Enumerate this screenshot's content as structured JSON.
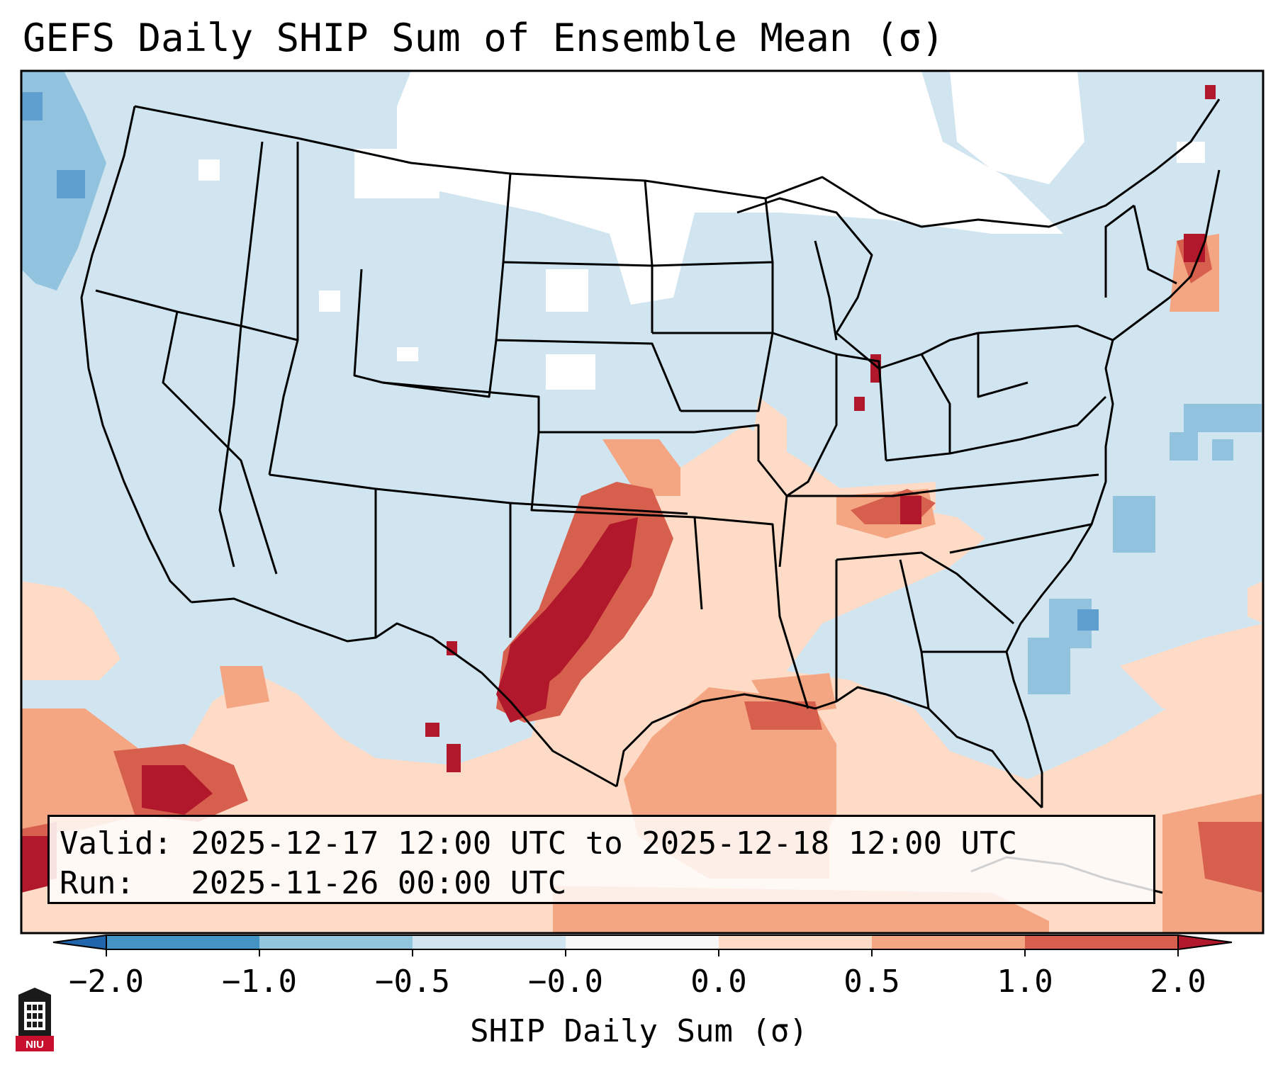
{
  "title": "GEFS Daily SHIP Sum of Ensemble Mean (σ)",
  "info": {
    "valid_line": "Valid: 2025-12-17 12:00 UTC to 2025-12-18 12:00 UTC",
    "run_line": "Run:   2025-11-26 00:00 UTC"
  },
  "colorbar": {
    "label": "SHIP Daily Sum (σ)",
    "ticks": [
      "−2.0",
      "−1.0",
      "−0.5",
      "−0.0",
      "0.0",
      "0.5",
      "1.0",
      "2.0"
    ],
    "colors": [
      "#2f7fbf",
      "#5e9fd0",
      "#92c3de",
      "#d1e5f0",
      "#f7f7f7",
      "#fddbc7",
      "#f4a582",
      "#d6604d",
      "#b2182b"
    ],
    "extend": "both"
  },
  "map": {
    "region": "Contiguous United States, Mexico, Gulf of Mexico",
    "overlays": [
      "state boundaries",
      "coastlines",
      "country borders"
    ]
  },
  "logo": {
    "text": "NIU"
  }
}
